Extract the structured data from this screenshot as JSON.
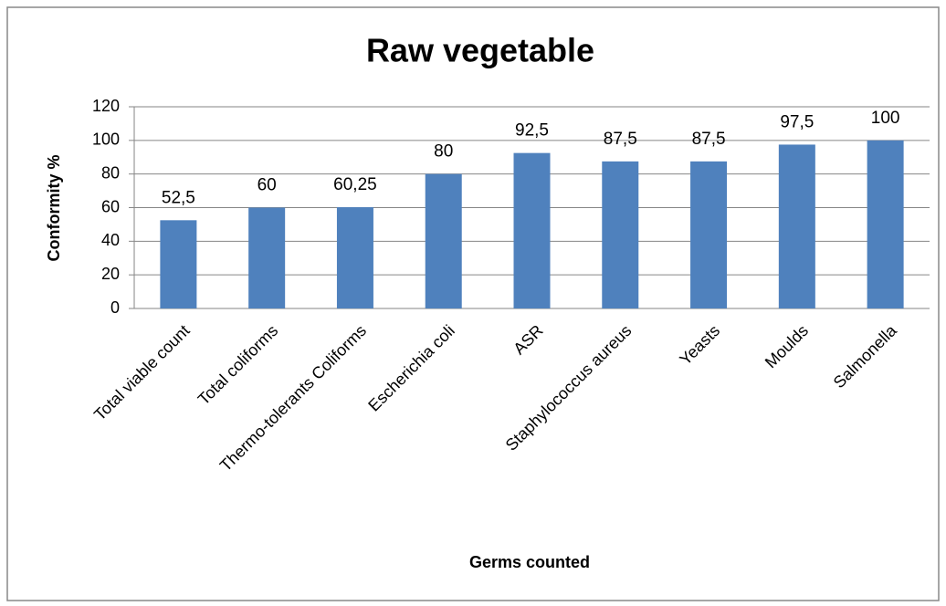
{
  "chart_data": {
    "type": "bar",
    "title": "Raw vegetable",
    "x_label": "Germs counted",
    "y_label": "Conformity %",
    "categories": [
      "Total viable count",
      "Total coliforms",
      "Thermo-tolerants Coliforms",
      "Escherichia coli",
      "ASR",
      "Staphylococcus aureus",
      "Yeasts",
      "Moulds",
      "Salmonella"
    ],
    "values": [
      52.5,
      60,
      60.25,
      80,
      92.5,
      87.5,
      87.5,
      97.5,
      100
    ],
    "value_labels": [
      "52,5",
      "60",
      "60,25",
      "80",
      "92,5",
      "87,5",
      "87,5",
      "97,5",
      "100"
    ],
    "color": "#4f81bd",
    "ylim": [
      0,
      120
    ],
    "yticks": [
      0,
      20,
      40,
      60,
      80,
      100,
      120
    ],
    "grid": true
  }
}
